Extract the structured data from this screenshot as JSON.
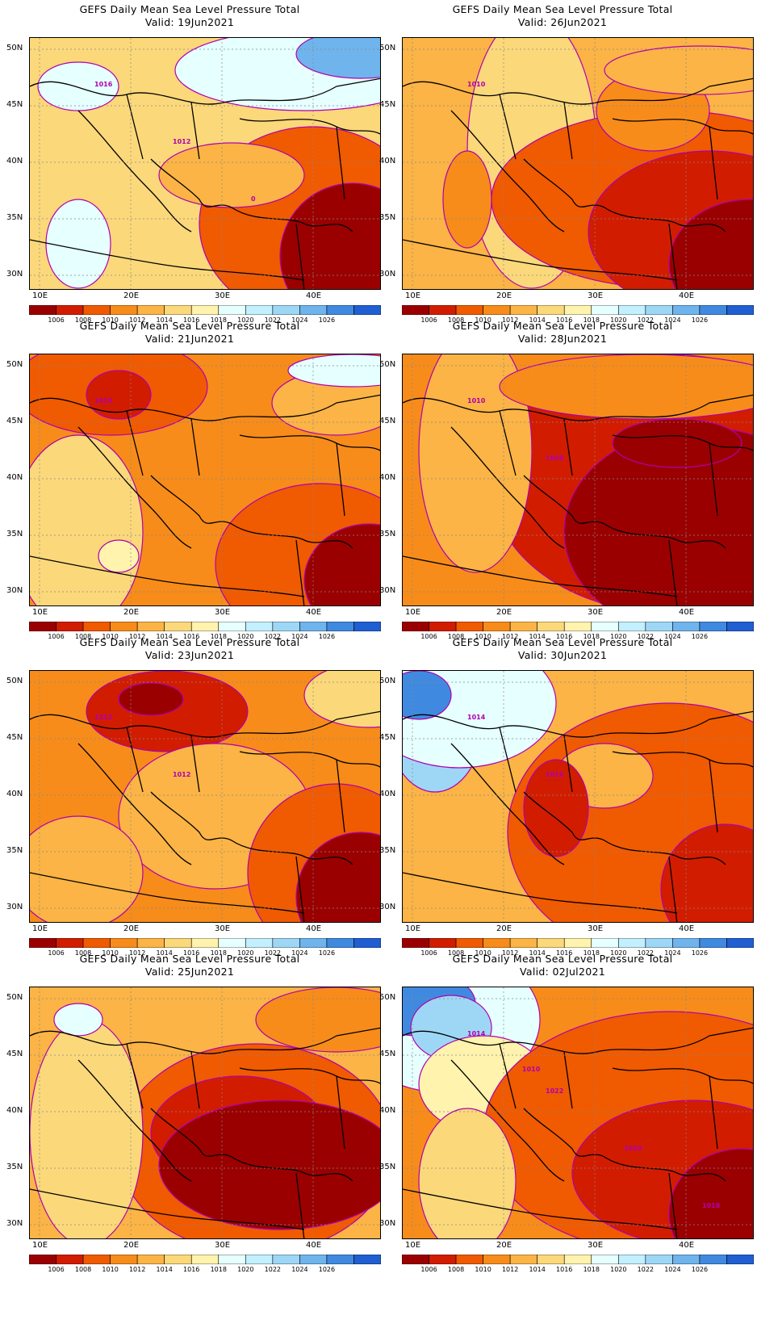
{
  "title": "GEFS Daily Mean Sea Level Pressure Total",
  "colorbar": {
    "colors": [
      "#9a0000",
      "#d21c00",
      "#f05a00",
      "#f78c1a",
      "#fbb445",
      "#fbd87a",
      "#fff3ad",
      "#e6ffff",
      "#c2f0ff",
      "#9ed7f6",
      "#6fb4ec",
      "#3f8ae0",
      "#1f5fd2"
    ],
    "labels": [
      "1006",
      "1008",
      "1010",
      "1012",
      "1014",
      "1016",
      "1018",
      "1020",
      "1022",
      "1024",
      "1026"
    ]
  },
  "axes": {
    "lat_labels": [
      "50N",
      "45N",
      "40N",
      "35N",
      "30N"
    ],
    "lon_labels": [
      "10E",
      "20E",
      "30E",
      "40E"
    ]
  },
  "panels": [
    {
      "valid": "Valid: 19Jun2021",
      "contour_labels": [
        "1016",
        "1012",
        "0"
      ]
    },
    {
      "valid": "Valid: 26Jun2021",
      "contour_labels": [
        "1010"
      ]
    },
    {
      "valid": "Valid: 21Jun2021",
      "contour_labels": [
        "1010"
      ]
    },
    {
      "valid": "Valid: 28Jun2021",
      "contour_labels": [
        "1010",
        "1008"
      ]
    },
    {
      "valid": "Valid: 23Jun2021",
      "contour_labels": [
        "1012",
        "1012"
      ]
    },
    {
      "valid": "Valid: 30Jun2021",
      "contour_labels": [
        "1014",
        "1016"
      ]
    },
    {
      "valid": "Valid: 25Jun2021",
      "contour_labels": []
    },
    {
      "valid": "Valid: 02Jul2021",
      "contour_labels": [
        "1014",
        "1022",
        "1020",
        "1018",
        "1010"
      ]
    }
  ]
}
